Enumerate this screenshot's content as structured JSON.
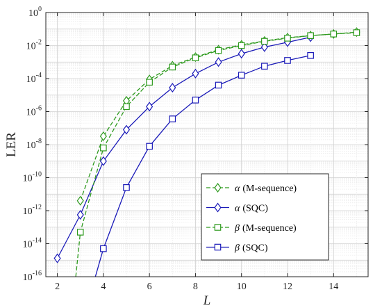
{
  "chart_data": {
    "type": "line",
    "xlabel": "L",
    "ylabel": "LER",
    "xlim": [
      1.5,
      15.5
    ],
    "ylim_log10": [
      -16,
      0
    ],
    "y_scale": "log",
    "grid": true,
    "legend_position": "bottom-right",
    "x_ticks": [
      "2",
      "4",
      "6",
      "8",
      "10",
      "12",
      "14"
    ],
    "y_ticks": [
      {
        "base": "10",
        "exp": "0"
      },
      {
        "base": "10",
        "exp": "-2"
      },
      {
        "base": "10",
        "exp": "-4"
      },
      {
        "base": "10",
        "exp": "-6"
      },
      {
        "base": "10",
        "exp": "-8"
      },
      {
        "base": "10",
        "exp": "-10"
      },
      {
        "base": "10",
        "exp": "-12"
      },
      {
        "base": "10",
        "exp": "-14"
      },
      {
        "base": "10",
        "exp": "-16"
      }
    ],
    "series": [
      {
        "name_greek": "α",
        "name_text": "(M-sequence)",
        "color": "#2e9a1e",
        "marker": "diamond",
        "dash": true,
        "x": [
          3,
          4,
          5,
          6,
          7,
          8,
          9,
          10,
          11,
          12,
          13,
          14,
          15
        ],
        "y": [
          4e-12,
          3.2e-08,
          4.5e-06,
          8.9e-05,
          0.0006,
          0.002,
          0.0056,
          0.011,
          0.019,
          0.03,
          0.04,
          0.05,
          0.065
        ]
      },
      {
        "name_greek": "α",
        "name_text": "(SQC)",
        "color": "#1a1ab8",
        "marker": "diamond",
        "dash": false,
        "x": [
          2,
          3,
          4,
          5,
          6,
          7,
          8,
          9,
          10,
          11,
          12,
          13
        ],
        "y": [
          1.3e-15,
          5.6e-13,
          1e-09,
          8e-08,
          2e-06,
          2.8e-05,
          0.0002,
          0.001,
          0.0032,
          0.008,
          0.016,
          0.032
        ]
      },
      {
        "name_greek": "β",
        "name_text": "(M-sequence)",
        "color": "#2e9a1e",
        "marker": "square",
        "dash": true,
        "x": [
          2.8,
          3,
          4,
          5,
          6,
          7,
          8,
          9,
          10,
          11,
          12,
          13,
          14,
          15
        ],
        "y": [
          1e-16,
          5e-14,
          6.3e-09,
          2e-06,
          6e-05,
          0.0005,
          0.0018,
          0.005,
          0.01,
          0.018,
          0.028,
          0.04,
          0.05,
          0.06
        ]
      },
      {
        "name_greek": "β",
        "name_text": "(SQC)",
        "color": "#1a1ab8",
        "marker": "square",
        "dash": false,
        "x": [
          3.65,
          4,
          5,
          6,
          7,
          8,
          9,
          10,
          11,
          12,
          13
        ],
        "y": [
          1e-16,
          5e-15,
          2.5e-11,
          7.9e-09,
          3.6e-07,
          5e-06,
          4e-05,
          0.00016,
          0.00056,
          0.00125,
          0.0025
        ]
      }
    ]
  }
}
